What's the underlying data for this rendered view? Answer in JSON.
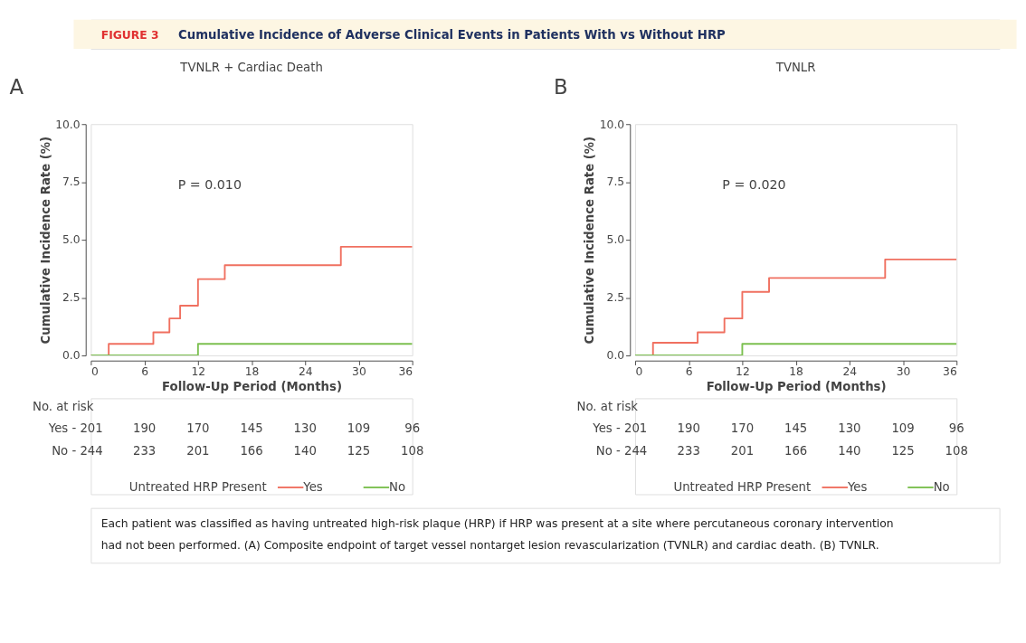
{
  "chart_data": [
    {
      "type": "step",
      "title": "TVNLR + Cardiac Death",
      "xlabel": "Follow-Up Period (Months)",
      "ylabel": "Cumulative Incidence Rate (%)",
      "legend_title": "Untreated HRP Present",
      "legend": "bottom",
      "xlim": [
        0,
        36
      ],
      "xticks": [
        0,
        6,
        12,
        18,
        24,
        30,
        36
      ],
      "ylim": [
        0,
        10
      ],
      "yticks": [
        {
          "value": 0,
          "label": "0.0"
        },
        {
          "value": 2.5,
          "label": "2.5"
        },
        {
          "value": 5,
          "label": "5.0"
        },
        {
          "value": 7.5,
          "label": "7.5"
        },
        {
          "value": 10,
          "label": "10.0"
        }
      ],
      "series": [
        {
          "name": "Yes",
          "color": "#f07060",
          "x": [
            0,
            2,
            7,
            8.8,
            10,
            12,
            15,
            28,
            36
          ],
          "values": [
            0,
            0.5,
            1.0,
            1.6,
            2.15,
            3.3,
            3.9,
            4.7,
            4.7
          ]
        },
        {
          "name": "No",
          "color": "#7cc050",
          "x": [
            0,
            12,
            36
          ],
          "values": [
            0,
            0.5,
            0.5
          ]
        }
      ],
      "annotations": [
        "FIGURE 3",
        "Cumulative Incidence of Adverse Clinical Events in Patients With vs Without HRP",
        "A",
        "P = 0.010",
        "No. at risk",
        "Yes - 201",
        "190",
        "170",
        "145",
        "130",
        "109",
        "96",
        "No - 244",
        "233",
        "201",
        "166",
        "140",
        "125",
        "108",
        "Each patient was classified as having untreated high-risk plaque (HRP) if HRP was present at a site where percutaneous coronary intervention had not been performed. (A) Composite endpoint of target vessel nontarget lesion revascularization (TVNLR) and cardiac death. (B) TVNLR."
      ]
    },
    {
      "type": "step",
      "title": "TVNLR",
      "xlabel": "Follow-Up Period (Months)",
      "ylabel": "Cumulative Incidence Rate (%)",
      "legend_title": "Untreated HRP Present",
      "legend": "bottom",
      "xlim": [
        0,
        36
      ],
      "xticks": [
        0,
        6,
        12,
        18,
        24,
        30,
        36
      ],
      "ylim": [
        0,
        10
      ],
      "yticks": [
        {
          "value": 0,
          "label": "0.0"
        },
        {
          "value": 2.5,
          "label": "2.5"
        },
        {
          "value": 5,
          "label": "5.0"
        },
        {
          "value": 7.5,
          "label": "7.5"
        },
        {
          "value": 10,
          "label": "10.0"
        }
      ],
      "series": [
        {
          "name": "Yes",
          "color": "#f07060",
          "x": [
            0,
            2,
            7,
            10,
            12,
            15,
            28,
            36
          ],
          "values": [
            0,
            0.55,
            1.0,
            1.6,
            2.75,
            3.35,
            4.15,
            4.15
          ]
        },
        {
          "name": "No",
          "color": "#7cc050",
          "x": [
            0,
            12,
            36
          ],
          "values": [
            0,
            0.5,
            0.5
          ]
        }
      ],
      "annotations": [
        "B",
        "P = 0.020",
        "No. at risk",
        "Yes - 201",
        "190",
        "170",
        "145",
        "130",
        "109",
        "96",
        "No - 244",
        "233",
        "201",
        "166",
        "140",
        "125",
        "108"
      ]
    }
  ]
}
